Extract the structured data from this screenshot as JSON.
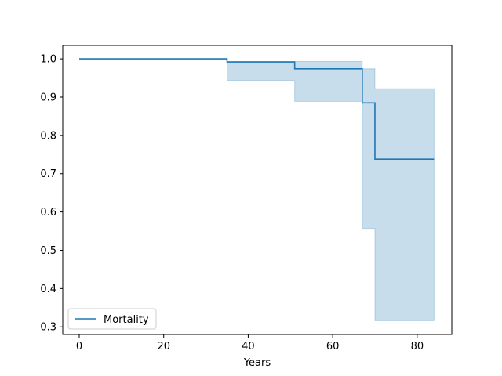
{
  "chart_data": {
    "type": "line",
    "title": "",
    "xlabel": "Years",
    "ylabel": "",
    "xlim": [
      -3.9,
      88.2
    ],
    "ylim": [
      0.28,
      1.035
    ],
    "xticks": [
      0,
      20,
      40,
      60,
      80
    ],
    "yticks": [
      0.3,
      0.4,
      0.5,
      0.6,
      0.7,
      0.8,
      0.9,
      1.0
    ],
    "grid": false,
    "legend_position": "lower-left",
    "series": [
      {
        "name": "Mortality",
        "color": "#1f77b4",
        "step": true,
        "x": [
          0,
          35,
          51,
          67,
          70,
          84
        ],
        "y": [
          1.0,
          0.992,
          0.974,
          0.885,
          0.738,
          0.738
        ],
        "lower": [
          1.0,
          0.943,
          0.889,
          0.557,
          0.316,
          0.316
        ],
        "upper": [
          1.0,
          0.993,
          0.993,
          0.974,
          0.922,
          0.922
        ]
      }
    ]
  }
}
